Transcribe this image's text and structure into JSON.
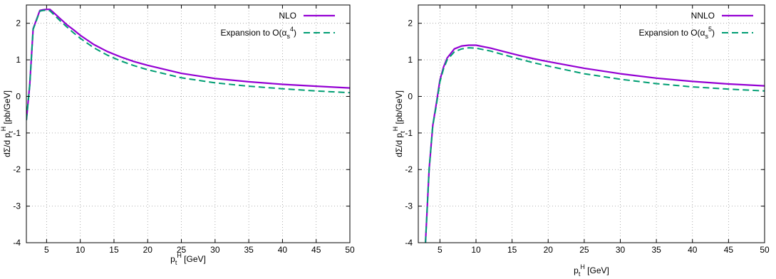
{
  "chart_data": [
    {
      "type": "line",
      "title": "",
      "xlabel": "p_t^H [GeV]",
      "ylabel": "dΣ/d p_t^H [pb/GeV]",
      "xlim": [
        2,
        50
      ],
      "ylim": [
        -4,
        2.5
      ],
      "xticks": [
        5,
        10,
        15,
        20,
        25,
        30,
        35,
        40,
        45,
        50
      ],
      "yticks": [
        -4,
        -3,
        -2,
        -1,
        0,
        1,
        2
      ],
      "grid": true,
      "legend_position": "top-right",
      "series": [
        {
          "name": "NLO",
          "color": "#9400d3",
          "style": "solid",
          "x": [
            2,
            2.5,
            3,
            3.5,
            4,
            4.5,
            5,
            5.5,
            6,
            7,
            8,
            9,
            10,
            12,
            14,
            16,
            18,
            20,
            25,
            30,
            35,
            40,
            45,
            50
          ],
          "y": [
            -0.65,
            0.3,
            1.85,
            2.1,
            2.35,
            2.37,
            2.38,
            2.38,
            2.3,
            2.13,
            1.96,
            1.82,
            1.67,
            1.42,
            1.23,
            1.08,
            0.95,
            0.85,
            0.63,
            0.49,
            0.4,
            0.33,
            0.28,
            0.23
          ]
        },
        {
          "name": "Expansion to O(α_s^4)",
          "color": "#009e73",
          "style": "dashed",
          "x": [
            2,
            2.5,
            3,
            3.5,
            4,
            4.5,
            5,
            5.5,
            6,
            7,
            8,
            9,
            10,
            12,
            14,
            16,
            18,
            20,
            25,
            30,
            35,
            40,
            45,
            50
          ],
          "y": [
            -0.65,
            0.3,
            1.83,
            2.08,
            2.33,
            2.35,
            2.36,
            2.34,
            2.25,
            2.07,
            1.9,
            1.74,
            1.59,
            1.33,
            1.13,
            0.97,
            0.84,
            0.73,
            0.51,
            0.37,
            0.28,
            0.21,
            0.15,
            0.1
          ]
        }
      ]
    },
    {
      "type": "line",
      "title": "",
      "xlabel": "p_t^H [GeV]",
      "ylabel": "dΣ/d p_t^H [pb/GeV]",
      "xlim": [
        2,
        50
      ],
      "ylim": [
        -4,
        2.5
      ],
      "xticks": [
        5,
        10,
        15,
        20,
        25,
        30,
        35,
        40,
        45,
        50
      ],
      "yticks": [
        -4,
        -3,
        -2,
        -1,
        0,
        1,
        2
      ],
      "grid": true,
      "legend_position": "top-right",
      "series": [
        {
          "name": "NNLO",
          "color": "#9400d3",
          "style": "solid",
          "x": [
            3,
            3.5,
            4,
            4.5,
            5,
            5.5,
            6,
            7,
            8,
            9,
            10,
            11,
            12,
            14,
            16,
            18,
            20,
            25,
            30,
            35,
            40,
            45,
            50
          ],
          "y": [
            -4,
            -2.0,
            -0.8,
            -0.2,
            0.45,
            0.8,
            1.05,
            1.3,
            1.38,
            1.4,
            1.4,
            1.36,
            1.32,
            1.22,
            1.12,
            1.03,
            0.95,
            0.77,
            0.62,
            0.5,
            0.41,
            0.34,
            0.29
          ]
        },
        {
          "name": "Expansion to O(α_s^5)",
          "color": "#009e73",
          "style": "dashed",
          "x": [
            3,
            3.5,
            4,
            4.5,
            5,
            5.5,
            6,
            7,
            8,
            9,
            10,
            11,
            12,
            14,
            16,
            18,
            20,
            25,
            30,
            35,
            40,
            45,
            50
          ],
          "y": [
            -4,
            -2.0,
            -0.8,
            -0.25,
            0.4,
            0.75,
            1.0,
            1.22,
            1.3,
            1.33,
            1.32,
            1.28,
            1.24,
            1.13,
            1.02,
            0.92,
            0.83,
            0.62,
            0.47,
            0.35,
            0.26,
            0.2,
            0.15
          ]
        }
      ]
    }
  ]
}
